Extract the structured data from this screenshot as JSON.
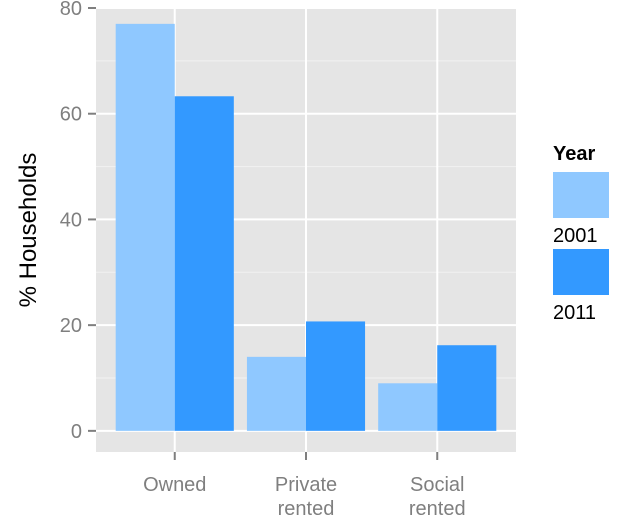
{
  "chart_data": {
    "type": "bar",
    "title": "",
    "xlabel": "",
    "ylabel": "% Households",
    "ylim": [
      -4,
      80
    ],
    "yticks": [
      0,
      20,
      40,
      60,
      80
    ],
    "grid": true,
    "legend_position": "right",
    "categories": [
      [
        "Owned"
      ],
      [
        "Private",
        "rented"
      ],
      [
        "Social",
        "rented"
      ]
    ],
    "series": [
      {
        "name": "2001",
        "color": "#8fc8ff",
        "values": [
          77,
          14,
          9
        ]
      },
      {
        "name": "2011",
        "color": "#3399ff",
        "values": [
          63.3,
          20.7,
          16.2
        ]
      }
    ],
    "legend": {
      "title": "Year"
    }
  },
  "style": {
    "panel_background": "#e5e5e5",
    "grid_color": "#ffffff",
    "tick_color": "#7f7f7f"
  }
}
